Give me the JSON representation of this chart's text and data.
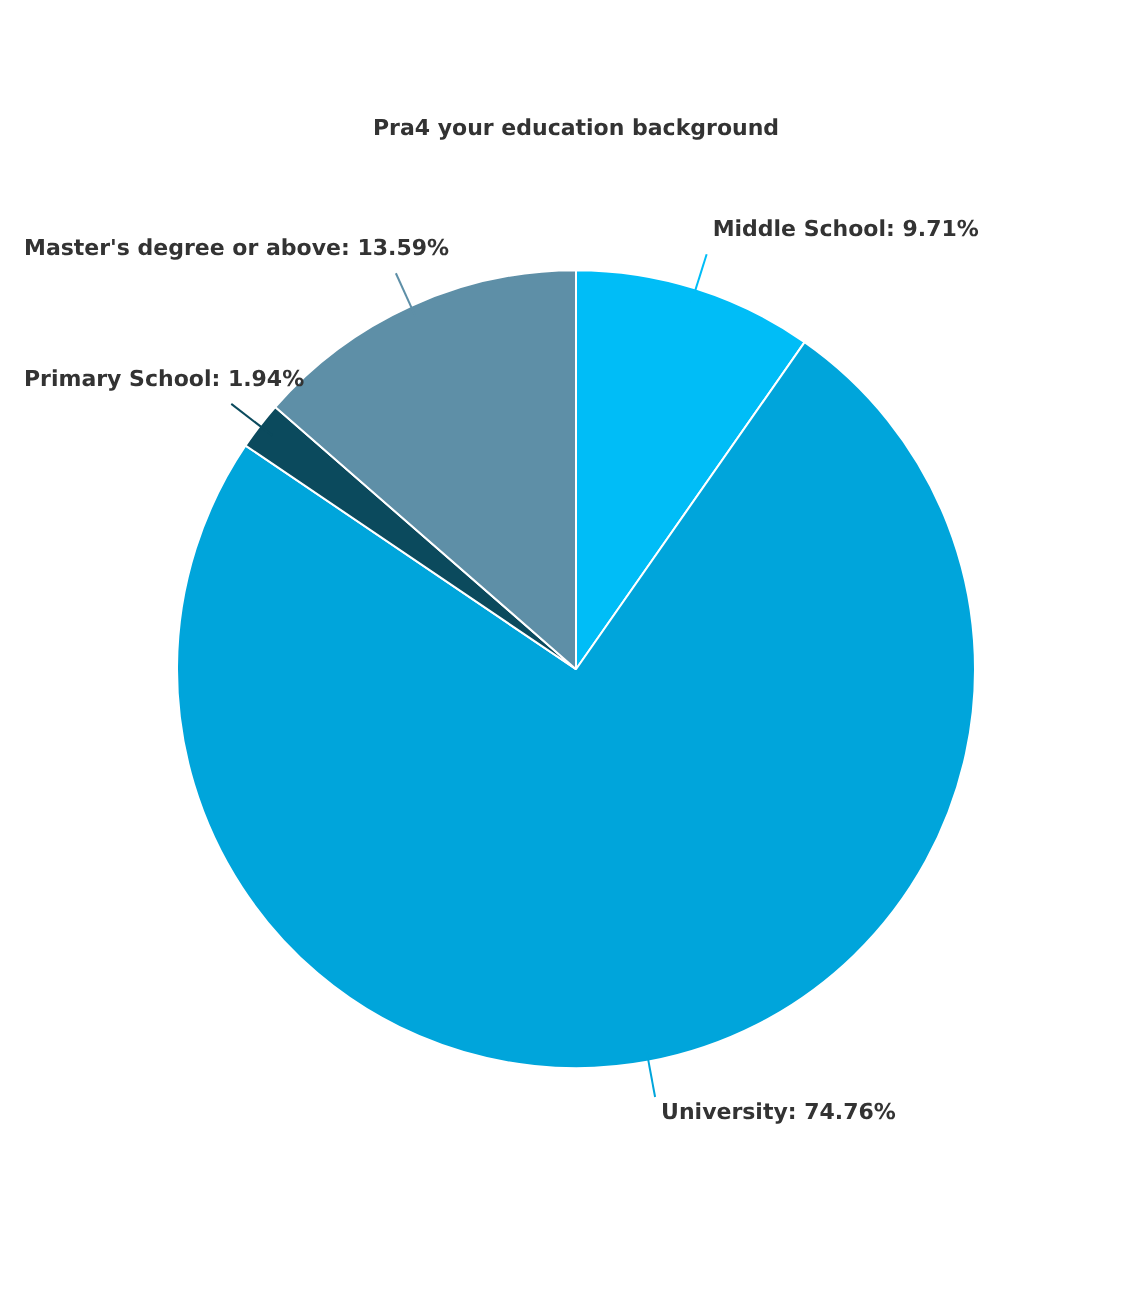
{
  "chart_data": {
    "type": "pie",
    "title": "Pra4 your education background",
    "categories": [
      "Middle School",
      "University",
      "Primary School",
      "Master's degree or above"
    ],
    "values": [
      9.71,
      74.76,
      1.94,
      13.59
    ],
    "value_labels": [
      "9.71%",
      "74.76%",
      "1.94%",
      "13.59%"
    ],
    "colors": [
      "#00bdf7",
      "#00a5db",
      "#0b4a5d",
      "#5e8fa7"
    ],
    "legend": false
  }
}
